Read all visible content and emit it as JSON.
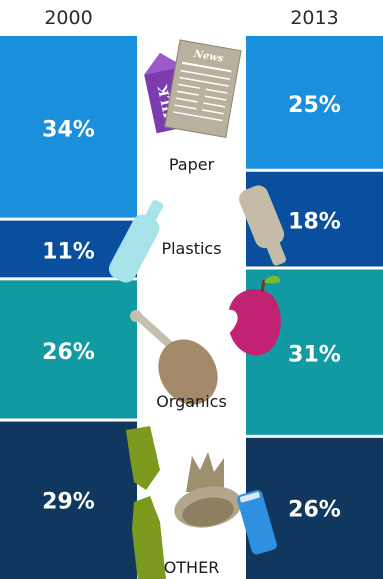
{
  "chart_data": {
    "type": "bar",
    "subtype": "stacked-100-percent-comparison",
    "categories": [
      "2000",
      "2013"
    ],
    "series": [
      {
        "name": "Paper",
        "values": [
          34,
          25
        ],
        "color": "#1a8fdc"
      },
      {
        "name": "Plastics",
        "values": [
          11,
          18
        ],
        "color": "#0a4f9e"
      },
      {
        "name": "Organics",
        "values": [
          26,
          31
        ],
        "color": "#129aa3"
      },
      {
        "name": "OTHER",
        "values": [
          29,
          26
        ],
        "color": "#10375e"
      }
    ],
    "value_suffix": "%",
    "title": "",
    "xlabel": "",
    "ylabel": "",
    "ylim": [
      0,
      100
    ],
    "legend": "center-labels",
    "grid": false
  },
  "icons": [
    "milk-carton-icon",
    "newspaper-icon",
    "plastic-bottle-icon",
    "apple-core-icon",
    "chicken-leg-icon",
    "broken-bottle-icon",
    "tin-can-icon",
    "soda-can-icon"
  ]
}
